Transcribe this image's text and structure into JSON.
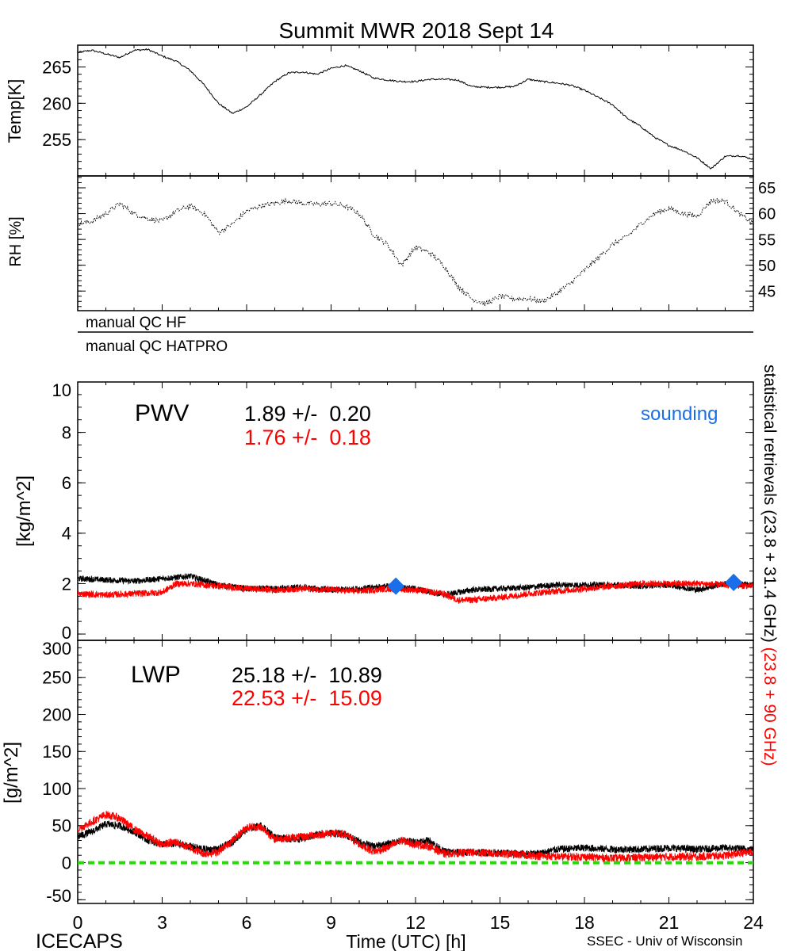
{
  "title": "Summit MWR 2018 Sept 14",
  "footer": {
    "left": "ICECAPS",
    "center": "Time (UTC) [h]",
    "right": "SSEC - Univ of Wisconsin"
  },
  "qc": {
    "hf": "manual QC HF",
    "hatpro": "manual QC HATPRO"
  },
  "right_label": {
    "black": "statistical retrievals (23.8 + 31.4 GHz)",
    "red": "(23.8 + 90 GHz)"
  },
  "colors": {
    "black": "#000000",
    "red": "#ff0000",
    "sounding": "#1a6ee8",
    "zero_line": "#22dd00"
  },
  "chart_data": [
    {
      "type": "line",
      "name": "temperature",
      "ylabel": "Temp[K]",
      "xlim": [
        0,
        24
      ],
      "ylim": [
        250,
        268
      ],
      "yticks": [
        "255",
        "260",
        "265"
      ],
      "x": [
        0,
        0.5,
        1,
        1.5,
        2,
        2.5,
        3,
        3.5,
        4,
        4.5,
        5,
        5.5,
        6,
        6.5,
        7,
        7.5,
        8,
        8.5,
        9,
        9.5,
        10,
        10.5,
        11,
        11.5,
        12,
        12.5,
        13,
        13.5,
        14,
        14.5,
        15,
        15.5,
        16,
        16.5,
        17,
        17.5,
        18,
        18.5,
        19,
        19.5,
        20,
        20.5,
        21,
        21.5,
        22,
        22.5,
        23,
        23.5,
        24
      ],
      "y": [
        267.0,
        267.3,
        266.8,
        266.3,
        267.3,
        267.4,
        266.5,
        265.8,
        264.5,
        262.5,
        260.0,
        258.6,
        259.5,
        261.2,
        263.0,
        264.2,
        264.3,
        264.0,
        264.8,
        265.2,
        264.5,
        263.5,
        263.2,
        263.0,
        263.0,
        263.3,
        263.3,
        263.2,
        262.3,
        262.2,
        262.2,
        262.3,
        263.3,
        263.0,
        262.8,
        262.5,
        261.8,
        260.8,
        259.8,
        258.0,
        256.8,
        255.3,
        254.2,
        253.5,
        252.5,
        251.0,
        252.7,
        252.8,
        252.3
      ]
    },
    {
      "type": "scatter",
      "name": "relative-humidity",
      "ylabel": "RH [%]",
      "xlim": [
        0,
        24
      ],
      "ylim": [
        41.2,
        67.3
      ],
      "yticks": [
        "45",
        "50",
        "55",
        "60",
        "65"
      ],
      "x": [
        0,
        0.5,
        1,
        1.5,
        2,
        2.5,
        3,
        3.5,
        4,
        4.5,
        5,
        5.5,
        6,
        6.5,
        7,
        7.5,
        8,
        8.5,
        9,
        9.5,
        10,
        10.5,
        11,
        11.5,
        12,
        12.5,
        13,
        13.5,
        14,
        14.5,
        15,
        15.5,
        16,
        16.5,
        17,
        17.5,
        18,
        18.5,
        19,
        19.5,
        20,
        20.5,
        21,
        21.5,
        22,
        22.5,
        23,
        23.5,
        24
      ],
      "y": [
        58,
        58.5,
        60,
        62,
        60,
        59,
        58.5,
        60.5,
        61.5,
        60,
        56.3,
        58,
        60.5,
        61.5,
        62,
        62.5,
        62,
        61.8,
        62,
        61.5,
        60,
        56,
        54,
        50,
        53.5,
        52.5,
        50,
        46,
        43.5,
        42.5,
        44,
        43.5,
        43.5,
        43,
        44.5,
        46.5,
        49,
        51.5,
        54,
        55.5,
        58,
        60,
        61,
        60,
        59.5,
        62.5,
        62.5,
        60,
        58
      ]
    },
    {
      "type": "line",
      "name": "pwv",
      "label": "PWV",
      "ylabel": "[kg/m^2]",
      "xlim": [
        0,
        24
      ],
      "ylim": [
        -0.25,
        10
      ],
      "yticks": [
        "0",
        "2",
        "4",
        "6",
        "8",
        "10"
      ],
      "series": [
        {
          "name": "23.8 + 31.4 GHz",
          "color": "black",
          "stats": "1.89 +/-  0.20",
          "x": [
            0,
            1,
            2,
            3,
            4,
            5,
            6,
            7,
            8,
            9,
            10,
            11,
            12,
            13,
            14,
            15,
            16,
            17,
            18,
            19,
            20,
            21,
            22,
            23,
            24
          ],
          "y": [
            2.2,
            2.15,
            2.1,
            2.2,
            2.3,
            1.95,
            1.8,
            1.8,
            1.85,
            1.75,
            1.8,
            1.9,
            1.8,
            1.55,
            1.75,
            1.8,
            1.85,
            1.95,
            1.95,
            1.95,
            1.9,
            1.95,
            1.75,
            2.0,
            1.95
          ]
        },
        {
          "name": "23.8 + 90 GHz",
          "color": "red",
          "stats": "1.76 +/-  0.18",
          "x": [
            0,
            1,
            2,
            3,
            3.5,
            4,
            5,
            6,
            7,
            8,
            9,
            10,
            11,
            12,
            13,
            13.5,
            14,
            15,
            16,
            17,
            18,
            19,
            20,
            21,
            22,
            23,
            24
          ],
          "y": [
            1.6,
            1.55,
            1.6,
            1.65,
            2.0,
            2.0,
            1.9,
            1.8,
            1.75,
            1.8,
            1.75,
            1.7,
            1.8,
            1.75,
            1.6,
            1.35,
            1.35,
            1.45,
            1.6,
            1.7,
            1.8,
            1.9,
            2.0,
            2.0,
            2.0,
            1.95,
            1.9
          ]
        }
      ],
      "sounding": {
        "label": "sounding",
        "x": [
          11.3,
          23.3
        ],
        "y": [
          1.9,
          2.05
        ]
      }
    },
    {
      "type": "line",
      "name": "lwp",
      "label": "LWP",
      "ylabel": "[g/m^2]",
      "xlim": [
        0,
        24
      ],
      "ylim": [
        -55,
        300
      ],
      "yticks": [
        "-50",
        "0",
        "50",
        "100",
        "150",
        "200",
        "250",
        "300"
      ],
      "xticks": [
        "0",
        "3",
        "6",
        "9",
        "12",
        "15",
        "18",
        "21",
        "24"
      ],
      "zero_line": 0,
      "series": [
        {
          "name": "23.8 + 31.4 GHz",
          "color": "black",
          "stats": "25.18 +/-  10.89",
          "x": [
            0,
            0.5,
            1,
            1.5,
            2,
            2.5,
            3,
            3.5,
            4,
            4.5,
            5,
            5.5,
            6,
            6.5,
            7,
            7.5,
            8,
            8.5,
            9,
            9.5,
            10,
            10.5,
            11,
            11.5,
            12,
            12.5,
            13,
            13.5,
            14,
            15,
            16,
            16.5,
            17,
            18,
            19,
            20,
            21,
            22,
            23,
            24
          ],
          "y": [
            35,
            42,
            52,
            50,
            42,
            30,
            25,
            25,
            22,
            18,
            18,
            28,
            45,
            50,
            35,
            32,
            32,
            38,
            40,
            38,
            28,
            22,
            25,
            30,
            28,
            30,
            15,
            14,
            14,
            13,
            12,
            13,
            18,
            20,
            18,
            18,
            20,
            18,
            20,
            18
          ]
        },
        {
          "name": "23.8 + 90 GHz",
          "color": "red",
          "stats": "22.53 +/-  15.09",
          "x": [
            0,
            0.5,
            1,
            1.5,
            2,
            2.5,
            3,
            3.5,
            4,
            4.5,
            5,
            5.5,
            6,
            6.5,
            7,
            8,
            9,
            9.5,
            10,
            10.5,
            11,
            11.5,
            12,
            12.5,
            13,
            14,
            15,
            16,
            17,
            18,
            19,
            20,
            21,
            22,
            23,
            24
          ],
          "y": [
            45,
            55,
            65,
            60,
            45,
            35,
            25,
            28,
            20,
            12,
            15,
            30,
            48,
            48,
            32,
            35,
            40,
            38,
            25,
            15,
            20,
            30,
            25,
            22,
            12,
            14,
            12,
            10,
            8,
            8,
            6,
            7,
            8,
            8,
            10,
            15
          ]
        }
      ]
    }
  ]
}
